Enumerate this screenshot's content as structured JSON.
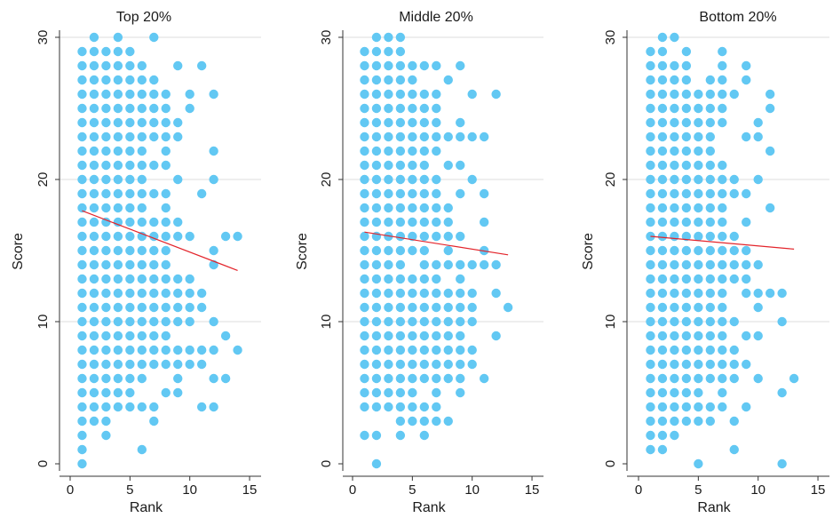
{
  "chart_data": [
    {
      "type": "scatter",
      "title": "Top 20%",
      "xlabel": "Rank",
      "ylabel": "Score",
      "xlim": [
        -1,
        16
      ],
      "ylim": [
        -1,
        31
      ],
      "xticks": [
        0,
        5,
        10,
        15
      ],
      "yticks": [
        0,
        10,
        20,
        30
      ],
      "grid": "horizontal",
      "marker_color": "#62c8f3",
      "fit_color": "#e3242b",
      "fit_line": {
        "x": [
          1,
          14
        ],
        "y": [
          17.8,
          13.6
        ]
      },
      "columns": [
        {
          "x": 1,
          "y": [
            0,
            1,
            2,
            3,
            4,
            5,
            6,
            7,
            8,
            9,
            10,
            11,
            12,
            13,
            14,
            15,
            16,
            17,
            18,
            19,
            20,
            21,
            22,
            23,
            24,
            25,
            26,
            27,
            28,
            29
          ]
        },
        {
          "x": 2,
          "y": [
            3,
            4,
            5,
            6,
            7,
            8,
            9,
            10,
            11,
            12,
            13,
            14,
            15,
            16,
            17,
            18,
            19,
            20,
            21,
            22,
            23,
            24,
            25,
            26,
            27,
            28,
            29,
            30
          ]
        },
        {
          "x": 3,
          "y": [
            2,
            3,
            4,
            5,
            6,
            7,
            8,
            9,
            10,
            11,
            12,
            13,
            14,
            15,
            16,
            17,
            18,
            19,
            20,
            21,
            22,
            23,
            24,
            25,
            26,
            27,
            28,
            29
          ]
        },
        {
          "x": 4,
          "y": [
            4,
            5,
            6,
            7,
            8,
            9,
            10,
            11,
            12,
            13,
            14,
            15,
            16,
            17,
            18,
            19,
            20,
            21,
            22,
            23,
            24,
            25,
            26,
            27,
            28,
            29,
            30
          ]
        },
        {
          "x": 5,
          "y": [
            4,
            5,
            6,
            7,
            8,
            9,
            10,
            11,
            12,
            13,
            14,
            15,
            16,
            17,
            18,
            19,
            20,
            21,
            22,
            23,
            24,
            25,
            26,
            27,
            28,
            29
          ]
        },
        {
          "x": 6,
          "y": [
            1,
            4,
            6,
            7,
            8,
            9,
            10,
            11,
            12,
            13,
            14,
            15,
            16,
            17,
            18,
            19,
            20,
            21,
            22,
            23,
            24,
            25,
            26,
            27,
            28
          ]
        },
        {
          "x": 7,
          "y": [
            3,
            4,
            7,
            8,
            9,
            10,
            11,
            12,
            13,
            14,
            15,
            16,
            17,
            19,
            21,
            23,
            24,
            25,
            26,
            27,
            30
          ]
        },
        {
          "x": 8,
          "y": [
            5,
            7,
            8,
            9,
            10,
            11,
            12,
            13,
            14,
            15,
            16,
            17,
            18,
            19,
            21,
            22,
            23,
            24,
            25,
            26
          ]
        },
        {
          "x": 9,
          "y": [
            5,
            6,
            7,
            8,
            10,
            11,
            12,
            13,
            16,
            17,
            20,
            23,
            24,
            28
          ]
        },
        {
          "x": 10,
          "y": [
            7,
            8,
            10,
            11,
            12,
            13,
            16,
            25,
            26
          ]
        },
        {
          "x": 11,
          "y": [
            4,
            7,
            8,
            11,
            12,
            19,
            28
          ]
        },
        {
          "x": 12,
          "y": [
            4,
            6,
            8,
            10,
            14,
            15,
            20,
            22,
            26
          ]
        },
        {
          "x": 13,
          "y": [
            6,
            9,
            16
          ]
        },
        {
          "x": 14,
          "y": [
            8,
            16
          ]
        }
      ]
    },
    {
      "type": "scatter",
      "title": "Middle 20%",
      "xlabel": "Rank",
      "ylabel": "Score",
      "xlim": [
        -1,
        16
      ],
      "ylim": [
        -1,
        31
      ],
      "xticks": [
        0,
        5,
        10,
        15
      ],
      "yticks": [
        0,
        10,
        20,
        30
      ],
      "grid": "horizontal",
      "marker_color": "#62c8f3",
      "fit_color": "#e3242b",
      "fit_line": {
        "x": [
          1,
          13
        ],
        "y": [
          16.3,
          14.7
        ]
      },
      "columns": [
        {
          "x": 1,
          "y": [
            2,
            4,
            5,
            6,
            7,
            8,
            9,
            10,
            11,
            12,
            13,
            14,
            15,
            16,
            17,
            18,
            19,
            20,
            21,
            22,
            23,
            24,
            25,
            26,
            27,
            28,
            29
          ]
        },
        {
          "x": 2,
          "y": [
            0,
            2,
            4,
            5,
            6,
            7,
            8,
            9,
            10,
            11,
            12,
            13,
            14,
            15,
            16,
            17,
            18,
            19,
            20,
            21,
            22,
            23,
            24,
            25,
            26,
            27,
            28,
            29,
            30
          ]
        },
        {
          "x": 3,
          "y": [
            4,
            5,
            6,
            7,
            8,
            9,
            10,
            11,
            12,
            13,
            14,
            15,
            16,
            17,
            18,
            19,
            20,
            21,
            22,
            23,
            24,
            25,
            26,
            27,
            28,
            29,
            30
          ]
        },
        {
          "x": 4,
          "y": [
            2,
            3,
            4,
            5,
            6,
            7,
            8,
            9,
            10,
            11,
            12,
            13,
            14,
            15,
            16,
            17,
            18,
            19,
            20,
            21,
            22,
            23,
            24,
            25,
            26,
            27,
            28,
            29,
            30
          ]
        },
        {
          "x": 5,
          "y": [
            3,
            4,
            5,
            6,
            7,
            8,
            9,
            10,
            11,
            12,
            13,
            15,
            16,
            17,
            18,
            19,
            20,
            21,
            22,
            23,
            24,
            25,
            26,
            27,
            28
          ]
        },
        {
          "x": 6,
          "y": [
            2,
            3,
            4,
            6,
            7,
            8,
            9,
            10,
            11,
            12,
            13,
            14,
            15,
            16,
            17,
            18,
            19,
            20,
            21,
            22,
            23,
            24,
            25,
            26,
            28
          ]
        },
        {
          "x": 7,
          "y": [
            3,
            4,
            5,
            6,
            7,
            8,
            9,
            10,
            11,
            12,
            13,
            14,
            16,
            17,
            18,
            19,
            20,
            22,
            23,
            24,
            25,
            26,
            28
          ]
        },
        {
          "x": 8,
          "y": [
            3,
            6,
            7,
            8,
            9,
            10,
            11,
            12,
            14,
            15,
            16,
            17,
            18,
            21,
            23,
            27
          ]
        },
        {
          "x": 9,
          "y": [
            5,
            6,
            7,
            8,
            9,
            10,
            11,
            12,
            13,
            14,
            16,
            19,
            21,
            23,
            24,
            28
          ]
        },
        {
          "x": 10,
          "y": [
            7,
            8,
            10,
            11,
            12,
            14,
            20,
            23,
            26
          ]
        },
        {
          "x": 11,
          "y": [
            6,
            14,
            15,
            17,
            19,
            23
          ]
        },
        {
          "x": 12,
          "y": [
            9,
            12,
            14,
            26
          ]
        },
        {
          "x": 13,
          "y": [
            11
          ]
        }
      ]
    },
    {
      "type": "scatter",
      "title": "Bottom 20%",
      "xlabel": "Rank",
      "ylabel": "Score",
      "xlim": [
        -1,
        16
      ],
      "ylim": [
        -1,
        31
      ],
      "xticks": [
        0,
        5,
        10,
        15
      ],
      "yticks": [
        0,
        10,
        20,
        30
      ],
      "grid": "horizontal",
      "marker_color": "#62c8f3",
      "fit_color": "#e3242b",
      "fit_line": {
        "x": [
          1,
          13
        ],
        "y": [
          16.0,
          15.1
        ]
      },
      "columns": [
        {
          "x": 1,
          "y": [
            1,
            2,
            3,
            4,
            5,
            6,
            7,
            8,
            9,
            10,
            11,
            12,
            13,
            14,
            15,
            16,
            17,
            18,
            19,
            20,
            21,
            22,
            23,
            24,
            25,
            26,
            27,
            28,
            29
          ]
        },
        {
          "x": 2,
          "y": [
            1,
            2,
            3,
            4,
            5,
            6,
            7,
            8,
            9,
            10,
            11,
            12,
            13,
            14,
            15,
            16,
            17,
            18,
            19,
            20,
            21,
            22,
            23,
            24,
            25,
            26,
            27,
            28,
            29,
            30
          ]
        },
        {
          "x": 3,
          "y": [
            2,
            3,
            4,
            5,
            6,
            7,
            8,
            9,
            10,
            11,
            12,
            13,
            14,
            15,
            16,
            17,
            18,
            19,
            20,
            21,
            22,
            23,
            24,
            25,
            26,
            27,
            28,
            30
          ]
        },
        {
          "x": 4,
          "y": [
            3,
            4,
            5,
            6,
            7,
            8,
            9,
            10,
            11,
            12,
            13,
            14,
            15,
            16,
            17,
            18,
            19,
            20,
            21,
            22,
            23,
            24,
            25,
            26,
            27,
            28,
            29
          ]
        },
        {
          "x": 5,
          "y": [
            0,
            3,
            4,
            5,
            6,
            7,
            8,
            9,
            10,
            11,
            12,
            13,
            14,
            15,
            16,
            17,
            18,
            19,
            20,
            21,
            22,
            23,
            24,
            25,
            26
          ]
        },
        {
          "x": 6,
          "y": [
            3,
            4,
            6,
            7,
            8,
            9,
            10,
            11,
            12,
            13,
            14,
            15,
            16,
            17,
            18,
            19,
            20,
            21,
            22,
            23,
            24,
            25,
            26,
            27
          ]
        },
        {
          "x": 7,
          "y": [
            4,
            5,
            6,
            7,
            8,
            9,
            10,
            11,
            12,
            13,
            14,
            15,
            16,
            17,
            18,
            19,
            20,
            21,
            24,
            25,
            26,
            27,
            28,
            29
          ]
        },
        {
          "x": 8,
          "y": [
            1,
            3,
            6,
            7,
            8,
            10,
            13,
            14,
            15,
            16,
            19,
            20,
            26
          ]
        },
        {
          "x": 9,
          "y": [
            4,
            7,
            9,
            12,
            13,
            14,
            15,
            17,
            19,
            23,
            27,
            28
          ]
        },
        {
          "x": 10,
          "y": [
            6,
            9,
            11,
            12,
            14,
            20,
            23,
            24
          ]
        },
        {
          "x": 11,
          "y": [
            12,
            18,
            22,
            25,
            26
          ]
        },
        {
          "x": 12,
          "y": [
            0,
            5,
            10,
            12
          ]
        },
        {
          "x": 13,
          "y": [
            6
          ]
        }
      ]
    }
  ]
}
